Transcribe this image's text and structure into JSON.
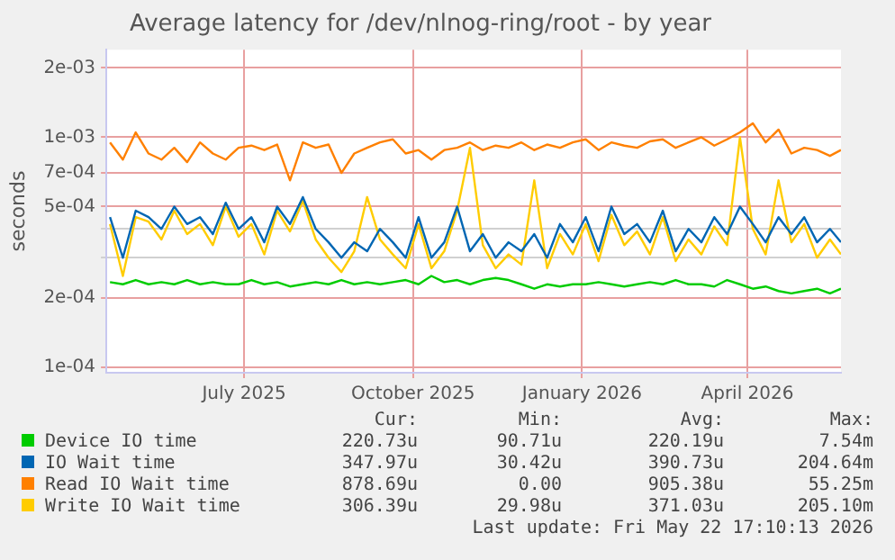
{
  "chart_data": {
    "type": "line",
    "title": "Average latency for /dev/nlnog-ring/root - by year",
    "ylabel": "seconds",
    "x": [
      "2025-04-19",
      "2025-04-26",
      "2025-05-03",
      "2025-05-10",
      "2025-05-17",
      "2025-05-24",
      "2025-05-31",
      "2025-06-07",
      "2025-06-14",
      "2025-06-21",
      "2025-06-28",
      "2025-07-05",
      "2025-07-12",
      "2025-07-19",
      "2025-07-26",
      "2025-08-02",
      "2025-08-09",
      "2025-08-16",
      "2025-08-23",
      "2025-08-30",
      "2025-09-06",
      "2025-09-13",
      "2025-09-20",
      "2025-09-27",
      "2025-10-04",
      "2025-10-11",
      "2025-10-18",
      "2025-10-25",
      "2025-11-01",
      "2025-11-08",
      "2025-11-15",
      "2025-11-22",
      "2025-11-29",
      "2025-12-06",
      "2025-12-13",
      "2025-12-20",
      "2025-12-27",
      "2026-01-03",
      "2026-01-10",
      "2026-01-17",
      "2026-01-24",
      "2026-01-31",
      "2026-02-07",
      "2026-02-14",
      "2026-02-21",
      "2026-02-28",
      "2026-03-07",
      "2026-03-14",
      "2026-03-21",
      "2026-03-28",
      "2026-04-04",
      "2026-04-11",
      "2026-04-18",
      "2026-04-25",
      "2026-05-02",
      "2026-05-09",
      "2026-05-16",
      "2026-05-22"
    ],
    "series": [
      {
        "name": "Device IO time",
        "color": "#00cc00",
        "values": [
          0.000235,
          0.00023,
          0.00024,
          0.00023,
          0.000235,
          0.00023,
          0.00024,
          0.00023,
          0.000235,
          0.00023,
          0.00023,
          0.00024,
          0.00023,
          0.000235,
          0.000225,
          0.00023,
          0.000235,
          0.00023,
          0.00024,
          0.00023,
          0.000235,
          0.00023,
          0.000235,
          0.00024,
          0.00023,
          0.00025,
          0.000235,
          0.00024,
          0.00023,
          0.00024,
          0.000245,
          0.00024,
          0.00023,
          0.00022,
          0.00023,
          0.000225,
          0.00023,
          0.00023,
          0.000235,
          0.00023,
          0.000225,
          0.00023,
          0.000235,
          0.00023,
          0.00024,
          0.00023,
          0.00023,
          0.000225,
          0.00024,
          0.00023,
          0.00022,
          0.000225,
          0.000215,
          0.00021,
          0.000215,
          0.00022,
          0.00021,
          0.00022
        ]
      },
      {
        "name": "IO Wait time",
        "color": "#0066b3",
        "values": [
          0.00045,
          0.0003,
          0.00048,
          0.00045,
          0.0004,
          0.0005,
          0.00042,
          0.00045,
          0.00038,
          0.00052,
          0.0004,
          0.00045,
          0.00035,
          0.0005,
          0.00042,
          0.00055,
          0.0004,
          0.00035,
          0.0003,
          0.00035,
          0.00032,
          0.0004,
          0.00035,
          0.0003,
          0.00045,
          0.0003,
          0.00035,
          0.0005,
          0.00032,
          0.00038,
          0.0003,
          0.00035,
          0.00032,
          0.00038,
          0.0003,
          0.00042,
          0.00035,
          0.00045,
          0.00032,
          0.0005,
          0.00038,
          0.00042,
          0.00035,
          0.00048,
          0.00032,
          0.0004,
          0.00035,
          0.00045,
          0.00038,
          0.0005,
          0.00042,
          0.00035,
          0.00045,
          0.00038,
          0.00045,
          0.00035,
          0.0004,
          0.00035
        ]
      },
      {
        "name": "Read IO Wait time",
        "color": "#ff8000",
        "values": [
          0.00095,
          0.0008,
          0.00105,
          0.00085,
          0.0008,
          0.0009,
          0.00078,
          0.00095,
          0.00085,
          0.0008,
          0.0009,
          0.00092,
          0.00088,
          0.00093,
          0.00065,
          0.00095,
          0.0009,
          0.00093,
          0.0007,
          0.00085,
          0.0009,
          0.00095,
          0.00098,
          0.00085,
          0.00088,
          0.0008,
          0.00088,
          0.0009,
          0.00095,
          0.00088,
          0.00092,
          0.0009,
          0.00095,
          0.00088,
          0.00093,
          0.0009,
          0.00095,
          0.00098,
          0.00088,
          0.00095,
          0.00092,
          0.0009,
          0.00096,
          0.00098,
          0.0009,
          0.00095,
          0.001,
          0.00092,
          0.00098,
          0.00105,
          0.00115,
          0.00095,
          0.00108,
          0.00085,
          0.0009,
          0.00088,
          0.00083,
          0.00088
        ]
      },
      {
        "name": "Write IO Wait time",
        "color": "#ffcc00",
        "values": [
          0.00042,
          0.00025,
          0.00045,
          0.00043,
          0.00036,
          0.00048,
          0.00038,
          0.00042,
          0.00034,
          0.0005,
          0.00037,
          0.00042,
          0.00031,
          0.00048,
          0.00039,
          0.00053,
          0.00036,
          0.0003,
          0.00026,
          0.00032,
          0.00055,
          0.00036,
          0.00031,
          0.00027,
          0.00042,
          0.00027,
          0.00032,
          0.00048,
          0.0009,
          0.00034,
          0.00027,
          0.00031,
          0.00028,
          0.00065,
          0.00027,
          0.00038,
          0.00031,
          0.00042,
          0.00029,
          0.00046,
          0.00034,
          0.00039,
          0.00031,
          0.00045,
          0.00029,
          0.00036,
          0.00031,
          0.00041,
          0.00034,
          0.001,
          0.0004,
          0.00031,
          0.00065,
          0.00035,
          0.00042,
          0.0003,
          0.00036,
          0.00031
        ]
      }
    ],
    "xlim": [
      "2025-04-17",
      "2026-05-22"
    ],
    "xticks": [
      {
        "value": "2025-07-01",
        "label": "July 2025"
      },
      {
        "value": "2025-10-01",
        "label": "October 2025"
      },
      {
        "value": "2026-01-01",
        "label": "January 2026"
      },
      {
        "value": "2026-04-01",
        "label": "April 2026"
      }
    ],
    "ylim": [
      9.5e-05,
      0.0024
    ],
    "log": true,
    "yticks": [
      {
        "value": 0.0001,
        "label": "1e-04"
      },
      {
        "value": 0.0002,
        "label": "2e-04"
      },
      {
        "value": 0.0003,
        "label": null
      },
      {
        "value": 0.0004,
        "label": null
      },
      {
        "value": 0.0005,
        "label": "5e-04"
      },
      {
        "value": 0.0007,
        "label": "7e-04"
      },
      {
        "value": 0.001,
        "label": "1e-03"
      },
      {
        "value": 0.002,
        "label": "2e-03"
      }
    ],
    "grid": true,
    "legend": "bottom",
    "marker": "none",
    "line_style": "solid",
    "annotations": [
      "Cur:",
      "Min:",
      "Avg:",
      "Max:",
      "220.73u",
      "90.71u",
      "220.19u",
      "7.54m",
      "347.97u",
      "30.42u",
      "390.73u",
      "204.64m",
      "878.69u",
      "0.00",
      "905.38u",
      "55.25m",
      "306.39u",
      "29.98u",
      "371.03u",
      "205.10m",
      "Last update: Fri May 22 17:10:13 2026"
    ]
  }
}
